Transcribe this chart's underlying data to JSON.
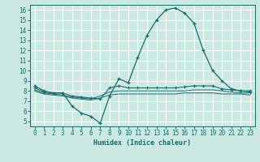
{
  "xlabel": "Humidex (Indice chaleur)",
  "bg_color": "#cce8e3",
  "line_color": "#1a6b6b",
  "xlim": [
    -0.5,
    23.5
  ],
  "ylim": [
    4.5,
    16.5
  ],
  "xticks": [
    0,
    1,
    2,
    3,
    4,
    5,
    6,
    7,
    8,
    9,
    10,
    11,
    12,
    13,
    14,
    15,
    16,
    17,
    18,
    19,
    20,
    21,
    22,
    23
  ],
  "yticks": [
    5,
    6,
    7,
    8,
    9,
    10,
    11,
    12,
    13,
    14,
    15,
    16
  ],
  "line1_y": [
    8.5,
    8.0,
    7.8,
    7.8,
    6.5,
    5.8,
    5.5,
    4.8,
    7.5,
    9.2,
    8.8,
    11.3,
    13.5,
    15.0,
    16.0,
    16.2,
    15.7,
    14.7,
    12.0,
    10.0,
    9.0,
    8.2,
    8.0,
    8.0
  ],
  "line2_y": [
    8.3,
    7.9,
    7.8,
    7.8,
    7.5,
    7.4,
    7.3,
    7.2,
    8.3,
    8.5,
    8.3,
    8.3,
    8.3,
    8.3,
    8.3,
    8.3,
    8.4,
    8.5,
    8.5,
    8.5,
    8.2,
    8.1,
    8.0,
    7.9
  ],
  "line3_y": [
    8.1,
    7.8,
    7.7,
    7.6,
    7.4,
    7.3,
    7.2,
    7.5,
    7.9,
    8.0,
    8.0,
    8.0,
    8.0,
    8.0,
    8.0,
    8.0,
    8.0,
    8.1,
    8.1,
    8.1,
    8.0,
    7.9,
    7.8,
    7.8
  ],
  "line4_y": [
    8.0,
    7.7,
    7.6,
    7.5,
    7.3,
    7.2,
    7.1,
    7.3,
    7.6,
    7.7,
    7.7,
    7.7,
    7.7,
    7.7,
    7.7,
    7.7,
    7.8,
    7.8,
    7.8,
    7.8,
    7.7,
    7.7,
    7.7,
    7.6
  ],
  "line1_markers": true,
  "line2_markers": true,
  "line3_markers": false,
  "line4_markers": false
}
